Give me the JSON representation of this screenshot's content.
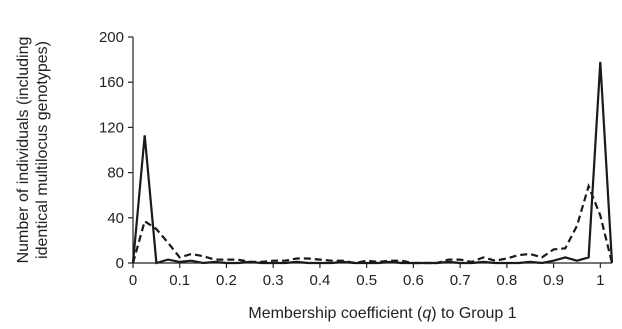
{
  "chart_data": {
    "type": "line",
    "xlabel": {
      "before": "Membership coefficient (",
      "var": "q",
      "after": ") to Group 1"
    },
    "ylabel": [
      "Number of individuals (including",
      "identical multilocus genotypes)"
    ],
    "xlim": [
      0,
      1.025
    ],
    "ylim": [
      0,
      200
    ],
    "x_ticks": [
      0,
      0.1,
      0.2,
      0.3,
      0.4,
      0.5,
      0.6,
      0.7,
      0.8,
      0.9,
      1
    ],
    "x_tick_labels": [
      "0",
      "0.1",
      "0.2",
      "0.3",
      "0.4",
      "0.5",
      "0.6",
      "0.7",
      "0.8",
      "0.9",
      "1"
    ],
    "y_ticks": [
      0,
      40,
      80,
      120,
      160,
      200
    ],
    "y_tick_labels": [
      "0",
      "40",
      "80",
      "120",
      "160",
      "200"
    ],
    "grid": false,
    "legend": "none",
    "series": [
      {
        "style": "solid",
        "color": "#1a1a1a",
        "x": [
          0,
          0.025,
          0.05,
          0.075,
          0.1,
          0.125,
          0.15,
          0.175,
          0.2,
          0.225,
          0.25,
          0.275,
          0.3,
          0.325,
          0.35,
          0.375,
          0.4,
          0.425,
          0.45,
          0.475,
          0.5,
          0.525,
          0.55,
          0.575,
          0.6,
          0.625,
          0.65,
          0.675,
          0.7,
          0.725,
          0.75,
          0.775,
          0.8,
          0.825,
          0.85,
          0.875,
          0.9,
          0.925,
          0.95,
          0.975,
          1,
          1.025
        ],
        "y": [
          0,
          113,
          0,
          3,
          1,
          2,
          0,
          1,
          0,
          0,
          1,
          0,
          0,
          0,
          1,
          0,
          0,
          0,
          1,
          0,
          0,
          0,
          1,
          0,
          0,
          0,
          0,
          1,
          0,
          0,
          1,
          0,
          0,
          0,
          1,
          0,
          2,
          5,
          2,
          5,
          178,
          0
        ]
      },
      {
        "style": "dashed",
        "color": "#1a1a1a",
        "x": [
          0,
          0.025,
          0.05,
          0.075,
          0.1,
          0.125,
          0.15,
          0.175,
          0.2,
          0.225,
          0.25,
          0.275,
          0.3,
          0.325,
          0.35,
          0.375,
          0.4,
          0.425,
          0.45,
          0.475,
          0.5,
          0.525,
          0.55,
          0.575,
          0.6,
          0.625,
          0.65,
          0.675,
          0.7,
          0.725,
          0.75,
          0.775,
          0.8,
          0.825,
          0.85,
          0.875,
          0.9,
          0.925,
          0.95,
          0.975,
          1,
          1.025
        ],
        "y": [
          0,
          37,
          30,
          18,
          5,
          8,
          6,
          3,
          3,
          3,
          1,
          1,
          2,
          2,
          4,
          4,
          3,
          2,
          2,
          0,
          2,
          1,
          2,
          2,
          0,
          0,
          0,
          3,
          3,
          1,
          5,
          2,
          4,
          7,
          8,
          5,
          12,
          13,
          33,
          68,
          42,
          0
        ]
      }
    ]
  }
}
